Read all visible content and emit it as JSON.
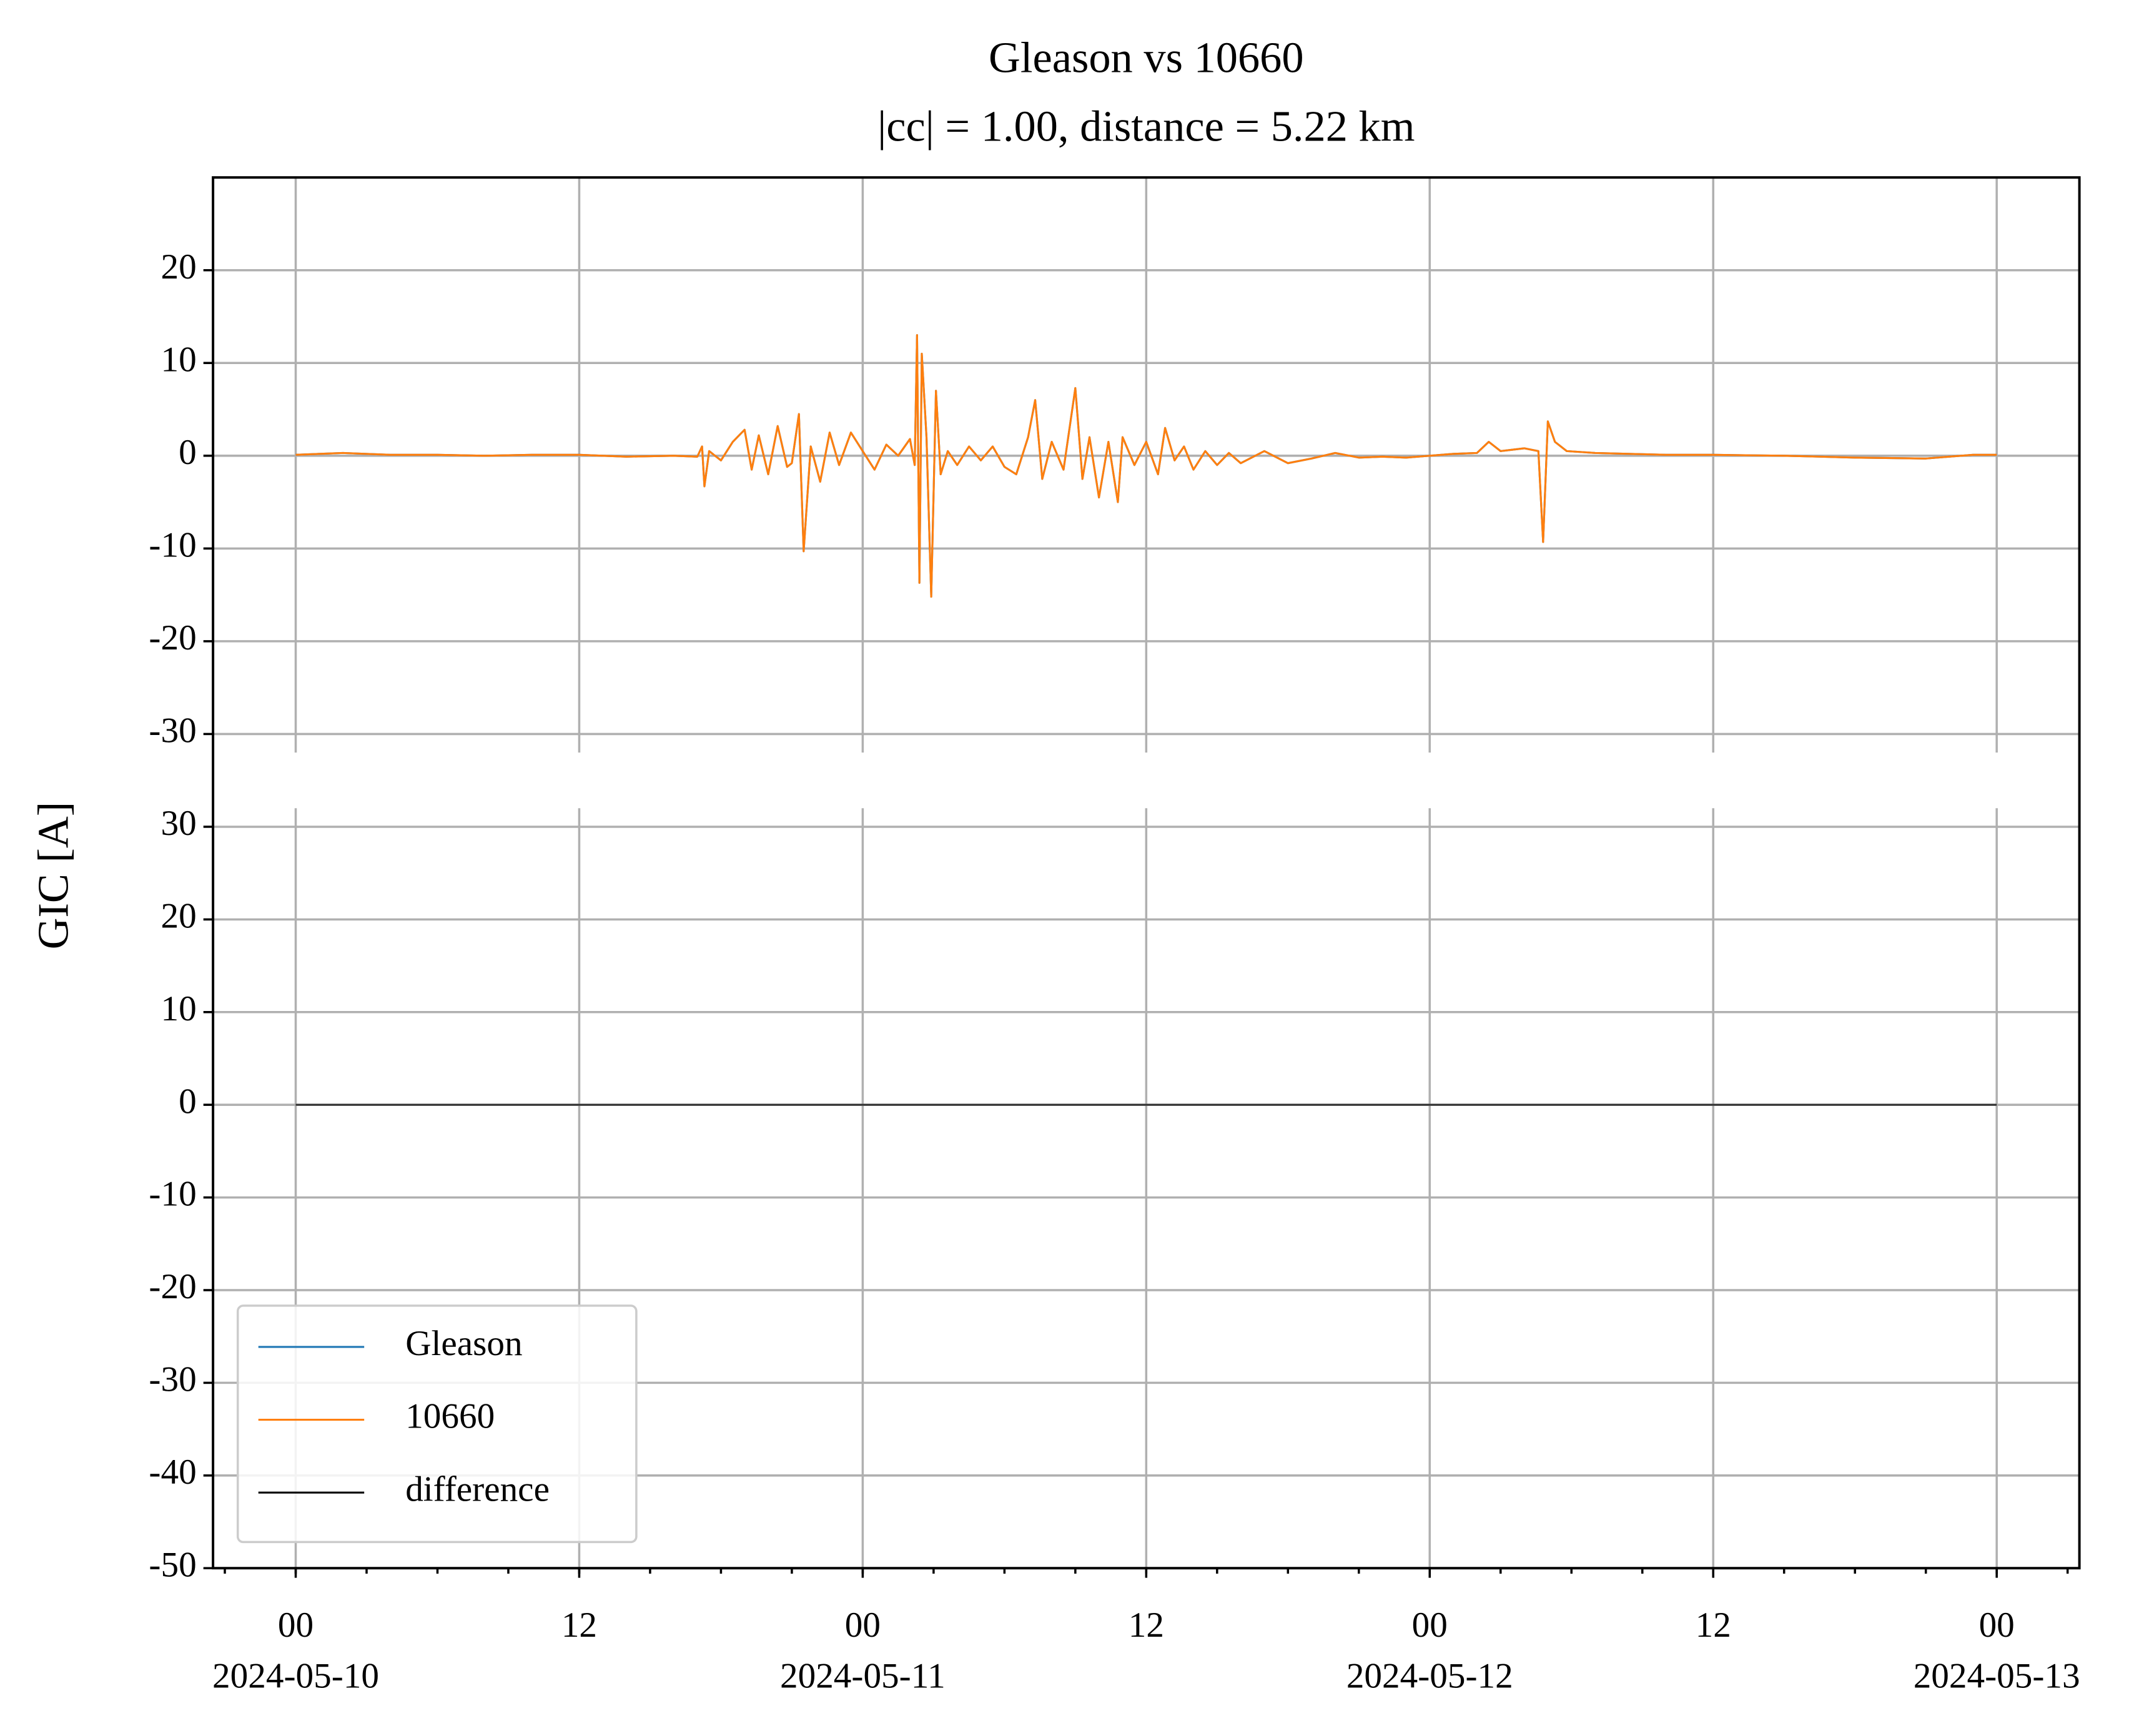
{
  "chart_data": [
    {
      "type": "line",
      "title": "Gleason vs 10660",
      "subtitle": "|cc| = 1.00, distance = 5.22 km",
      "ylabel": "GIC [A]",
      "x": [
        "2024-05-10 00:00",
        "2024-05-10 02:00",
        "2024-05-10 04:00",
        "2024-05-10 06:00",
        "2024-05-10 08:00",
        "2024-05-10 10:00",
        "2024-05-10 12:00",
        "2024-05-10 14:00",
        "2024-05-10 16:00",
        "2024-05-10 17:00",
        "2024-05-10 17:12",
        "2024-05-10 17:18",
        "2024-05-10 17:30",
        "2024-05-10 18:00",
        "2024-05-10 18:30",
        "2024-05-10 19:00",
        "2024-05-10 19:18",
        "2024-05-10 19:36",
        "2024-05-10 20:00",
        "2024-05-10 20:24",
        "2024-05-10 20:48",
        "2024-05-10 21:00",
        "2024-05-10 21:18",
        "2024-05-10 21:30",
        "2024-05-10 21:48",
        "2024-05-10 22:12",
        "2024-05-10 22:36",
        "2024-05-10 23:00",
        "2024-05-10 23:30",
        "2024-05-11 00:00",
        "2024-05-11 00:30",
        "2024-05-11 01:00",
        "2024-05-11 01:30",
        "2024-05-11 02:00",
        "2024-05-11 02:12",
        "2024-05-11 02:18",
        "2024-05-11 02:24",
        "2024-05-11 02:30",
        "2024-05-11 02:42",
        "2024-05-11 02:54",
        "2024-05-11 03:06",
        "2024-05-11 03:18",
        "2024-05-11 03:36",
        "2024-05-11 04:00",
        "2024-05-11 04:30",
        "2024-05-11 05:00",
        "2024-05-11 05:30",
        "2024-05-11 06:00",
        "2024-05-11 06:30",
        "2024-05-11 07:00",
        "2024-05-11 07:18",
        "2024-05-11 07:36",
        "2024-05-11 08:00",
        "2024-05-11 08:30",
        "2024-05-11 09:00",
        "2024-05-11 09:18",
        "2024-05-11 09:36",
        "2024-05-11 10:00",
        "2024-05-11 10:24",
        "2024-05-11 10:48",
        "2024-05-11 11:00",
        "2024-05-11 11:30",
        "2024-05-11 12:00",
        "2024-05-11 12:30",
        "2024-05-11 12:48",
        "2024-05-11 13:12",
        "2024-05-11 13:36",
        "2024-05-11 14:00",
        "2024-05-11 14:30",
        "2024-05-11 15:00",
        "2024-05-11 15:30",
        "2024-05-11 16:00",
        "2024-05-11 17:00",
        "2024-05-11 18:00",
        "2024-05-11 19:00",
        "2024-05-11 20:00",
        "2024-05-11 21:00",
        "2024-05-11 22:00",
        "2024-05-11 23:00",
        "2024-05-12 00:00",
        "2024-05-12 01:00",
        "2024-05-12 02:00",
        "2024-05-12 02:30",
        "2024-05-12 03:00",
        "2024-05-12 04:00",
        "2024-05-12 04:36",
        "2024-05-12 04:48",
        "2024-05-12 05:00",
        "2024-05-12 05:18",
        "2024-05-12 05:48",
        "2024-05-12 07:00",
        "2024-05-12 10:00",
        "2024-05-12 12:00",
        "2024-05-12 15:00",
        "2024-05-12 18:00",
        "2024-05-12 21:00",
        "2024-05-12 23:00",
        "2024-05-13 00:00"
      ],
      "series": [
        {
          "name": "Gleason",
          "color": "#1f77b4",
          "values": [
            0.1,
            0.3,
            0.1,
            0.1,
            0,
            0.1,
            0.1,
            -0.1,
            0,
            -0.1,
            1.0,
            -3.3,
            0.5,
            -0.5,
            1.5,
            2.8,
            -1.5,
            2.2,
            -2,
            3.2,
            -1.2,
            -0.8,
            4.5,
            -10.3,
            1,
            -2.8,
            2.5,
            -1,
            2.5,
            0.5,
            -1.5,
            1.2,
            0,
            1.8,
            -1,
            13,
            -13.7,
            11,
            2,
            -15.2,
            7,
            -2,
            0.5,
            -1,
            1,
            -0.5,
            1,
            -1.2,
            -2,
            2,
            6,
            -2.5,
            1.5,
            -1.5,
            7.3,
            -2.5,
            2,
            -4.5,
            1.5,
            -5,
            2,
            -1,
            1.5,
            -2,
            3,
            -0.5,
            1,
            -1.5,
            0.5,
            -1,
            0.3,
            -0.8,
            0.5,
            -0.8,
            -0.3,
            0.3,
            -0.2,
            -0.1,
            -0.2,
            0,
            0.2,
            0.3,
            1.5,
            0.5,
            0.8,
            0.5,
            -9.3,
            3.7,
            1.5,
            0.5,
            0.3,
            0.1,
            0.1,
            0,
            -0.2,
            -0.3,
            0.1,
            0.1
          ]
        },
        {
          "name": "10660",
          "color": "#ff7f0e",
          "values": [
            0.1,
            0.3,
            0.1,
            0.1,
            0,
            0.1,
            0.1,
            -0.1,
            0,
            -0.1,
            1.0,
            -3.3,
            0.5,
            -0.5,
            1.5,
            2.8,
            -1.5,
            2.2,
            -2,
            3.2,
            -1.2,
            -0.8,
            4.5,
            -10.3,
            1,
            -2.8,
            2.5,
            -1,
            2.5,
            0.5,
            -1.5,
            1.2,
            0,
            1.8,
            -1,
            13,
            -13.7,
            11,
            2,
            -15.2,
            7,
            -2,
            0.5,
            -1,
            1,
            -0.5,
            1,
            -1.2,
            -2,
            2,
            6,
            -2.5,
            1.5,
            -1.5,
            7.3,
            -2.5,
            2,
            -4.5,
            1.5,
            -5,
            2,
            -1,
            1.5,
            -2,
            3,
            -0.5,
            1,
            -1.5,
            0.5,
            -1,
            0.3,
            -0.8,
            0.5,
            -0.8,
            -0.3,
            0.3,
            -0.2,
            -0.1,
            -0.2,
            0,
            0.2,
            0.3,
            1.5,
            0.5,
            0.8,
            0.5,
            -9.3,
            3.7,
            1.5,
            0.5,
            0.3,
            0.1,
            0.1,
            0,
            -0.2,
            -0.3,
            0.1,
            0.1
          ]
        }
      ],
      "ylim": [
        -32,
        30
      ],
      "yticks": [
        -30,
        -20,
        -10,
        0,
        10,
        20
      ],
      "grid": true
    },
    {
      "type": "line",
      "x": [
        "2024-05-10 00:00",
        "2024-05-10 12:00",
        "2024-05-11 00:00",
        "2024-05-11 12:00",
        "2024-05-12 00:00",
        "2024-05-12 12:00",
        "2024-05-13 00:00"
      ],
      "series": [
        {
          "name": "difference",
          "color": "#000000",
          "values": [
            0,
            0,
            0,
            0,
            0,
            0,
            0
          ]
        }
      ],
      "xlim": [
        "2024-05-09 20:30",
        "2024-05-13 03:30"
      ],
      "xticks": [
        {
          "value": "2024-05-10 00:00",
          "label": "00\n2024-05-10"
        },
        {
          "value": "2024-05-10 12:00",
          "label": "12"
        },
        {
          "value": "2024-05-11 00:00",
          "label": "00\n2024-05-11"
        },
        {
          "value": "2024-05-11 12:00",
          "label": "12"
        },
        {
          "value": "2024-05-12 00:00",
          "label": "00\n2024-05-12"
        },
        {
          "value": "2024-05-12 12:00",
          "label": "12"
        },
        {
          "value": "2024-05-13 00:00",
          "label": "00\n2024-05-13"
        }
      ],
      "ylim": [
        -50,
        32
      ],
      "yticks": [
        -50,
        -40,
        -30,
        -20,
        -10,
        0,
        10,
        20,
        30
      ],
      "grid": true,
      "legend": "lower left"
    }
  ]
}
